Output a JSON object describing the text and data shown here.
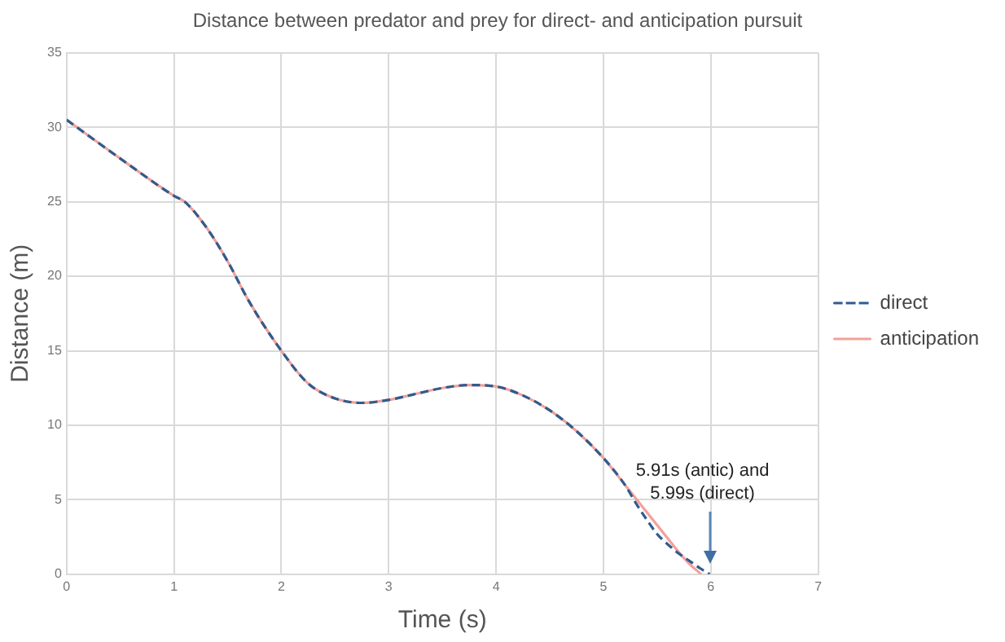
{
  "chart_data": {
    "type": "line",
    "title": "Distance between predator and prey for direct- and anticipation pursuit",
    "xlabel": "Time (s)",
    "ylabel": "Distance (m)",
    "xlim": [
      0,
      7
    ],
    "xticks": [
      0,
      1,
      2,
      3,
      4,
      5,
      6,
      7
    ],
    "ylim": [
      0,
      35
    ],
    "yticks": [
      0,
      5,
      10,
      15,
      20,
      25,
      30,
      35
    ],
    "grid": true,
    "legend": "right",
    "marker": "none",
    "series": [
      {
        "name": "direct",
        "color": "#2e5c8f",
        "line_style": "dashed",
        "x": [
          0,
          0.5,
          1,
          1.1,
          1.3,
          1.5,
          1.7,
          2,
          2.25,
          2.5,
          2.75,
          3,
          3.25,
          3.5,
          3.75,
          4,
          4.25,
          4.5,
          4.75,
          5,
          5.2,
          5.3,
          5.4,
          5.5,
          5.6,
          5.7,
          5.8,
          5.9,
          5.99
        ],
        "values": [
          30.5,
          27.9,
          25.4,
          25,
          23.3,
          21,
          18.3,
          15,
          12.8,
          11.8,
          11.5,
          11.7,
          12.1,
          12.5,
          12.7,
          12.6,
          12,
          11,
          9.6,
          7.8,
          6,
          4.8,
          3.7,
          2.7,
          2,
          1.4,
          0.9,
          0.4,
          0
        ]
      },
      {
        "name": "anticipation",
        "color": "#f4a09a",
        "line_style": "solid",
        "x": [
          0,
          0.5,
          1,
          1.1,
          1.3,
          1.5,
          1.7,
          2,
          2.25,
          2.5,
          2.75,
          3,
          3.25,
          3.5,
          3.75,
          4,
          4.25,
          4.5,
          4.75,
          5,
          5.2,
          5.3,
          5.4,
          5.5,
          5.6,
          5.7,
          5.8,
          5.91
        ],
        "values": [
          30.5,
          27.9,
          25.4,
          25,
          23.3,
          21,
          18.3,
          15,
          12.8,
          11.8,
          11.5,
          11.7,
          12.1,
          12.5,
          12.7,
          12.6,
          12,
          11,
          9.6,
          7.8,
          6,
          5.1,
          4.2,
          3.3,
          2.4,
          1.5,
          0.7,
          0
        ]
      }
    ],
    "annotations": [
      "5.91s (antic) and 5.99s (direct)"
    ]
  }
}
